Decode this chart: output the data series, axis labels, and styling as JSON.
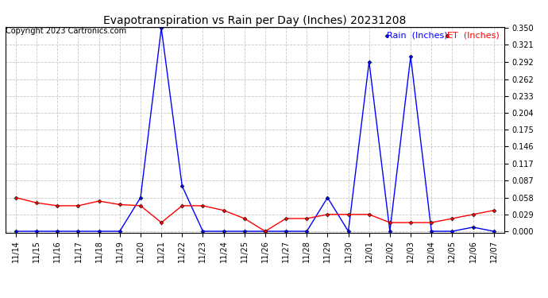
{
  "title": "Evapotranspiration vs Rain per Day (Inches) 20231208",
  "copyright": "Copyright 2023 Cartronics.com",
  "legend_rain": "Rain  (Inches)",
  "legend_et": "ET  (Inches)",
  "dates": [
    "11/14",
    "11/15",
    "11/16",
    "11/17",
    "11/18",
    "11/19",
    "11/20",
    "11/21",
    "11/22",
    "11/23",
    "11/24",
    "11/25",
    "11/26",
    "11/27",
    "11/28",
    "11/29",
    "11/30",
    "12/01",
    "12/02",
    "12/03",
    "12/04",
    "12/05",
    "12/06",
    "12/07"
  ],
  "rain": [
    0.0,
    0.0,
    0.0,
    0.0,
    0.0,
    0.0,
    0.058,
    0.35,
    0.078,
    0.0,
    0.0,
    0.0,
    0.0,
    0.0,
    0.0,
    0.058,
    0.0,
    0.292,
    0.0,
    0.301,
    0.0,
    0.0,
    0.007,
    0.0
  ],
  "et": [
    0.058,
    0.049,
    0.044,
    0.044,
    0.052,
    0.046,
    0.044,
    0.015,
    0.044,
    0.044,
    0.036,
    0.022,
    0.0,
    0.022,
    0.022,
    0.029,
    0.029,
    0.029,
    0.015,
    0.015,
    0.015,
    0.022,
    0.029,
    0.036
  ],
  "rain_color": "#0000ff",
  "et_color": "#ff0000",
  "background_color": "#ffffff",
  "grid_color": "#c8c8c8",
  "title_fontsize": 10,
  "copyright_fontsize": 7,
  "legend_fontsize": 8,
  "tick_fontsize": 7,
  "ylim_min": 0.0,
  "ylim_max": 0.35,
  "yticks": [
    0.0,
    0.029,
    0.058,
    0.087,
    0.117,
    0.146,
    0.175,
    0.204,
    0.233,
    0.262,
    0.292,
    0.321,
    0.35
  ]
}
